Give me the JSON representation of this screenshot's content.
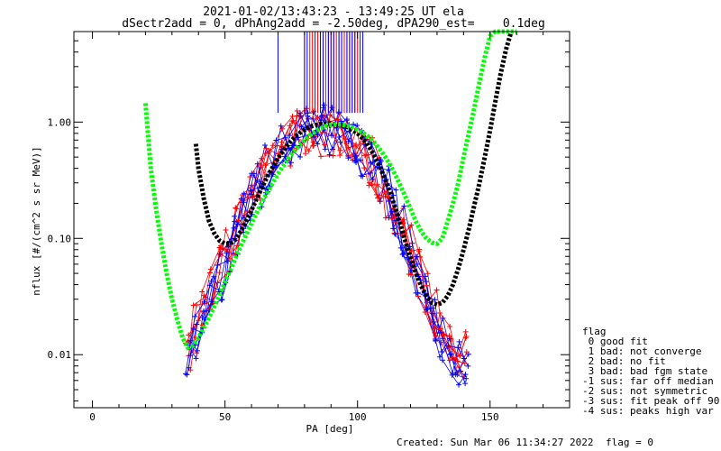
{
  "chart_data": {
    "type": "line",
    "title": "2021-01-02/13:43:23 - 13:49:25 UT ela",
    "subtitle": "dSectr2add = 0, dPhAng2add = -2.50deg, dPA290_est=    0.1deg",
    "xlabel": "PA [deg]",
    "ylabel": "nflux [#/(cm^2 s sr MeV)]",
    "xlim": [
      -7,
      180
    ],
    "ylim": [
      0.0035,
      6.0
    ],
    "y_scale": "log",
    "x_ticks": [
      0,
      50,
      100,
      150
    ],
    "x_tick_labels": [
      "0",
      "50",
      "100",
      "150"
    ],
    "y_ticks": [
      0.01,
      0.1,
      1.0
    ],
    "y_tick_labels": [
      "0.01",
      "0.10",
      "1.00"
    ],
    "grid": false,
    "series": [
      {
        "color": "#ff0000",
        "style": "plus-markers-lines",
        "x": [
          36,
          37,
          38,
          39,
          40,
          41,
          42,
          43,
          44,
          45,
          46,
          47,
          48,
          49,
          50,
          51,
          52,
          53,
          54,
          55,
          56,
          57,
          58,
          59,
          60,
          61,
          62,
          63,
          64,
          65,
          66,
          67,
          68,
          69,
          70,
          71,
          72,
          73,
          74,
          75,
          76,
          77,
          78,
          79,
          80,
          81,
          82,
          83,
          84,
          85,
          86,
          87,
          88,
          89,
          90,
          91,
          92,
          93,
          94,
          95,
          96,
          97,
          98,
          99,
          100,
          101,
          102,
          103,
          104,
          105,
          106,
          107,
          108,
          109,
          110,
          111,
          112,
          113,
          114,
          115,
          116,
          117,
          118,
          119,
          120,
          121,
          122,
          123,
          124,
          125,
          126,
          127,
          128,
          129,
          130,
          131,
          132,
          133,
          134,
          135,
          136,
          137,
          138,
          139,
          140,
          141,
          142,
          143
        ],
        "y": [
          0.012,
          0.013,
          0.014,
          0.016,
          0.018,
          0.02,
          0.023,
          0.026,
          0.03,
          0.034,
          0.039,
          0.045,
          0.052,
          0.06,
          0.069,
          0.079,
          0.091,
          0.104,
          0.119,
          0.136,
          0.155,
          0.176,
          0.199,
          0.224,
          0.251,
          0.279,
          0.309,
          0.34,
          0.372,
          0.405,
          0.438,
          0.471,
          0.504,
          0.536,
          0.567,
          0.597,
          0.626,
          0.653,
          0.678,
          0.701,
          0.722,
          0.741,
          0.758,
          0.772,
          0.784,
          0.794,
          0.802,
          0.808,
          0.812,
          0.814,
          0.814,
          0.812,
          0.808,
          0.802,
          0.794,
          0.784,
          0.772,
          0.758,
          0.741,
          0.722,
          0.701,
          0.678,
          0.653,
          0.626,
          0.597,
          0.567,
          0.536,
          0.504,
          0.471,
          0.438,
          0.405,
          0.372,
          0.34,
          0.309,
          0.279,
          0.251,
          0.224,
          0.199,
          0.176,
          0.155,
          0.136,
          0.119,
          0.104,
          0.091,
          0.079,
          0.069,
          0.06,
          0.052,
          0.045,
          0.039,
          0.034,
          0.03,
          0.026,
          0.023,
          0.02,
          0.018,
          0.016,
          0.014,
          0.013,
          0.012,
          0.011,
          0.011,
          0.01,
          0.01,
          0.01,
          0.01,
          0.009,
          0.009
        ]
      },
      {
        "color": "#0000ff",
        "style": "plus-markers-lines",
        "x": [
          36,
          37,
          38,
          39,
          40,
          41,
          42,
          43,
          44,
          45,
          46,
          47,
          48,
          49,
          50,
          51,
          52,
          53,
          54,
          55,
          56,
          57,
          58,
          59,
          60,
          61,
          62,
          63,
          64,
          65,
          66,
          67,
          68,
          69,
          70,
          71,
          72,
          73,
          74,
          75,
          76,
          77,
          78,
          79,
          80,
          81,
          82,
          83,
          84,
          85,
          86,
          87,
          88,
          89,
          90,
          91,
          92,
          93,
          94,
          95,
          96,
          97,
          98,
          99,
          100,
          101,
          102,
          103,
          104,
          105,
          106,
          107,
          108,
          109,
          110,
          111,
          112,
          113,
          114,
          115,
          116,
          117,
          118,
          119,
          120,
          121,
          122,
          123,
          124,
          125,
          126,
          127,
          128,
          129,
          130,
          131,
          132,
          133,
          134,
          135,
          136,
          137,
          138,
          139,
          140,
          141,
          142,
          143
        ],
        "y": [
          0.01,
          0.011,
          0.012,
          0.013,
          0.015,
          0.017,
          0.019,
          0.022,
          0.025,
          0.029,
          0.033,
          0.038,
          0.044,
          0.051,
          0.059,
          0.068,
          0.078,
          0.09,
          0.103,
          0.118,
          0.135,
          0.154,
          0.175,
          0.198,
          0.223,
          0.25,
          0.279,
          0.31,
          0.342,
          0.376,
          0.411,
          0.447,
          0.483,
          0.519,
          0.555,
          0.59,
          0.624,
          0.657,
          0.688,
          0.717,
          0.744,
          0.769,
          0.791,
          0.811,
          0.828,
          0.843,
          0.855,
          0.864,
          0.871,
          0.875,
          0.876,
          0.875,
          0.871,
          0.864,
          0.855,
          0.843,
          0.828,
          0.811,
          0.791,
          0.769,
          0.744,
          0.717,
          0.688,
          0.657,
          0.624,
          0.59,
          0.555,
          0.519,
          0.483,
          0.447,
          0.411,
          0.376,
          0.342,
          0.31,
          0.279,
          0.25,
          0.223,
          0.198,
          0.175,
          0.154,
          0.135,
          0.118,
          0.103,
          0.09,
          0.078,
          0.068,
          0.059,
          0.051,
          0.044,
          0.038,
          0.033,
          0.029,
          0.025,
          0.022,
          0.019,
          0.017,
          0.015,
          0.013,
          0.012,
          0.011,
          0.01,
          0.01,
          0.009,
          0.009,
          0.008,
          0.008,
          0.008,
          0.008
        ]
      },
      {
        "color": "#000000",
        "style": "thick-dotted",
        "x": [
          39,
          40,
          42,
          44,
          46,
          48,
          50,
          52,
          54,
          56,
          58,
          60,
          62,
          64,
          66,
          68,
          70,
          72,
          74,
          76,
          78,
          80,
          82,
          84,
          86,
          88,
          90,
          92,
          94,
          96,
          98,
          100,
          102,
          104,
          106,
          108,
          110,
          112,
          114,
          116,
          118,
          120,
          122,
          124,
          126,
          128,
          130,
          132,
          134,
          136,
          138,
          140,
          142,
          144,
          146,
          148,
          150,
          152,
          154,
          156,
          158
        ],
        "y": [
          0.65,
          0.4,
          0.22,
          0.14,
          0.11,
          0.095,
          0.09,
          0.09,
          0.098,
          0.115,
          0.14,
          0.175,
          0.22,
          0.275,
          0.34,
          0.41,
          0.49,
          0.57,
          0.65,
          0.73,
          0.8,
          0.86,
          0.91,
          0.94,
          0.96,
          0.97,
          0.97,
          0.96,
          0.94,
          0.91,
          0.86,
          0.8,
          0.72,
          0.63,
          0.53,
          0.43,
          0.34,
          0.26,
          0.19,
          0.135,
          0.095,
          0.068,
          0.05,
          0.039,
          0.032,
          0.028,
          0.027,
          0.028,
          0.032,
          0.04,
          0.055,
          0.08,
          0.12,
          0.19,
          0.3,
          0.5,
          0.85,
          1.5,
          2.6,
          4.2,
          6.0
        ]
      },
      {
        "color": "#00ff00",
        "style": "thick-dotted",
        "x": [
          20,
          22,
          24,
          26,
          28,
          30,
          32,
          34,
          36,
          38,
          40,
          42,
          44,
          46,
          48,
          50,
          52,
          54,
          56,
          58,
          60,
          62,
          64,
          66,
          68,
          70,
          72,
          74,
          76,
          78,
          80,
          82,
          84,
          86,
          88,
          90,
          92,
          94,
          96,
          98,
          100,
          102,
          104,
          106,
          108,
          110,
          112,
          114,
          116,
          118,
          120,
          122,
          124,
          126,
          128,
          130,
          132,
          134,
          136,
          138,
          140,
          142,
          144,
          146,
          148,
          150,
          152,
          154,
          156,
          158,
          160
        ],
        "y": [
          1.45,
          0.4,
          0.18,
          0.09,
          0.05,
          0.03,
          0.02,
          0.014,
          0.0115,
          0.012,
          0.014,
          0.017,
          0.021,
          0.026,
          0.033,
          0.042,
          0.053,
          0.068,
          0.086,
          0.108,
          0.135,
          0.167,
          0.205,
          0.25,
          0.3,
          0.36,
          0.42,
          0.49,
          0.56,
          0.63,
          0.7,
          0.77,
          0.83,
          0.88,
          0.92,
          0.95,
          0.96,
          0.95,
          0.93,
          0.9,
          0.86,
          0.81,
          0.75,
          0.68,
          0.6,
          0.52,
          0.44,
          0.36,
          0.29,
          0.23,
          0.18,
          0.14,
          0.115,
          0.1,
          0.092,
          0.09,
          0.1,
          0.14,
          0.2,
          0.3,
          0.5,
          0.8,
          1.3,
          2.2,
          3.6,
          5.5,
          6.0,
          6.0,
          6.0,
          6.0,
          6.0
        ]
      }
    ],
    "spikes": {
      "red": [
        80,
        82,
        83,
        85,
        86,
        87,
        88,
        89,
        90,
        91,
        92,
        93,
        94,
        95,
        96,
        97,
        98,
        99,
        100
      ],
      "blue": [
        70,
        80,
        81,
        84,
        86,
        87,
        89,
        90,
        91,
        93,
        94,
        96,
        97,
        98,
        99,
        101,
        102
      ]
    },
    "legend": {
      "placement": "right",
      "header": "flag",
      "items": [
        " 0 good fit",
        " 1 bad: not converge",
        " 2 bad: no fit",
        " 3 bad: bad fgm state",
        "-1 sus: far off median",
        "-2 sus: not symmetric",
        "-3 sus: fit peak off 90",
        "-4 sus: peaks high var"
      ]
    },
    "footer": {
      "created": "Created: Sun Mar 06 11:34:27 2022",
      "flag": "flag = 0"
    }
  }
}
